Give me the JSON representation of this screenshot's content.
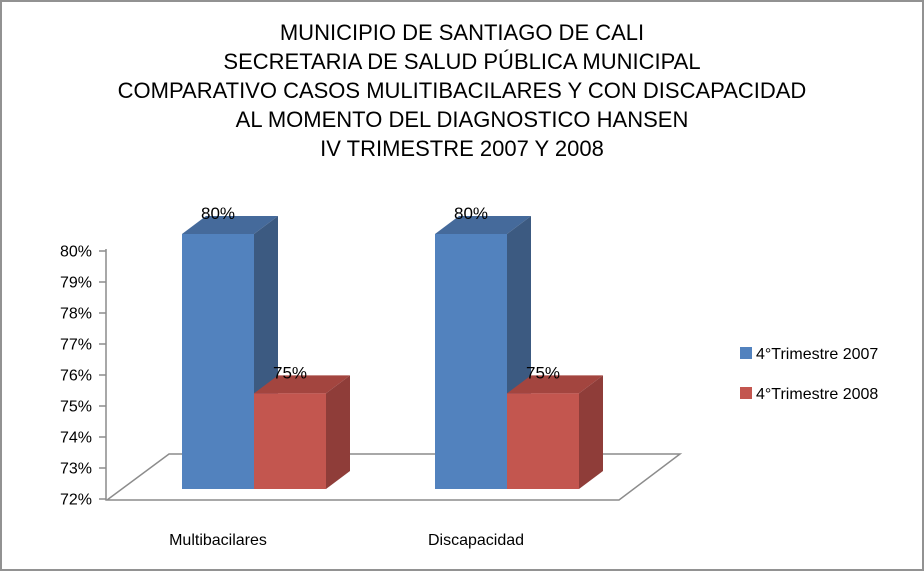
{
  "page": {
    "background": "#ffffff",
    "border_color": "#929292"
  },
  "chart_data": {
    "type": "bar",
    "style": "3d-column",
    "title_lines": [
      "MUNICIPIO DE SANTIAGO DE CALI",
      "SECRETARIA DE SALUD PÚBLICA MUNICIPAL",
      "COMPARATIVO CASOS MULITIBACILARES Y CON DISCAPACIDAD",
      "AL MOMENTO DEL DIAGNOSTICO HANSEN",
      "IV TRIMESTRE 2007 Y 2008"
    ],
    "categories": [
      "Multibacilares",
      "Discapacidad"
    ],
    "series": [
      {
        "name": "4°Trimestre 2007",
        "values": [
          80,
          80
        ],
        "data_labels": [
          "80%",
          "80%"
        ],
        "color_front": "#5282BE",
        "color_top": "#456A9B",
        "color_side": "#3C5A81"
      },
      {
        "name": "4°Trimestre 2008",
        "values": [
          75,
          75
        ],
        "data_labels": [
          "75%",
          "75%"
        ],
        "color_front": "#C3564F",
        "color_top": "#A3453F",
        "color_side": "#8F3D39"
      }
    ],
    "y_ticks": [
      "80%",
      "79%",
      "78%",
      "77%",
      "76%",
      "75%",
      "74%",
      "73%",
      "72%"
    ],
    "ylim": [
      72,
      80
    ],
    "xlabel": "",
    "ylabel": "",
    "grid": false,
    "legend_position": "right",
    "axis_color": "#8C8C8C",
    "text_color": "#000000"
  }
}
